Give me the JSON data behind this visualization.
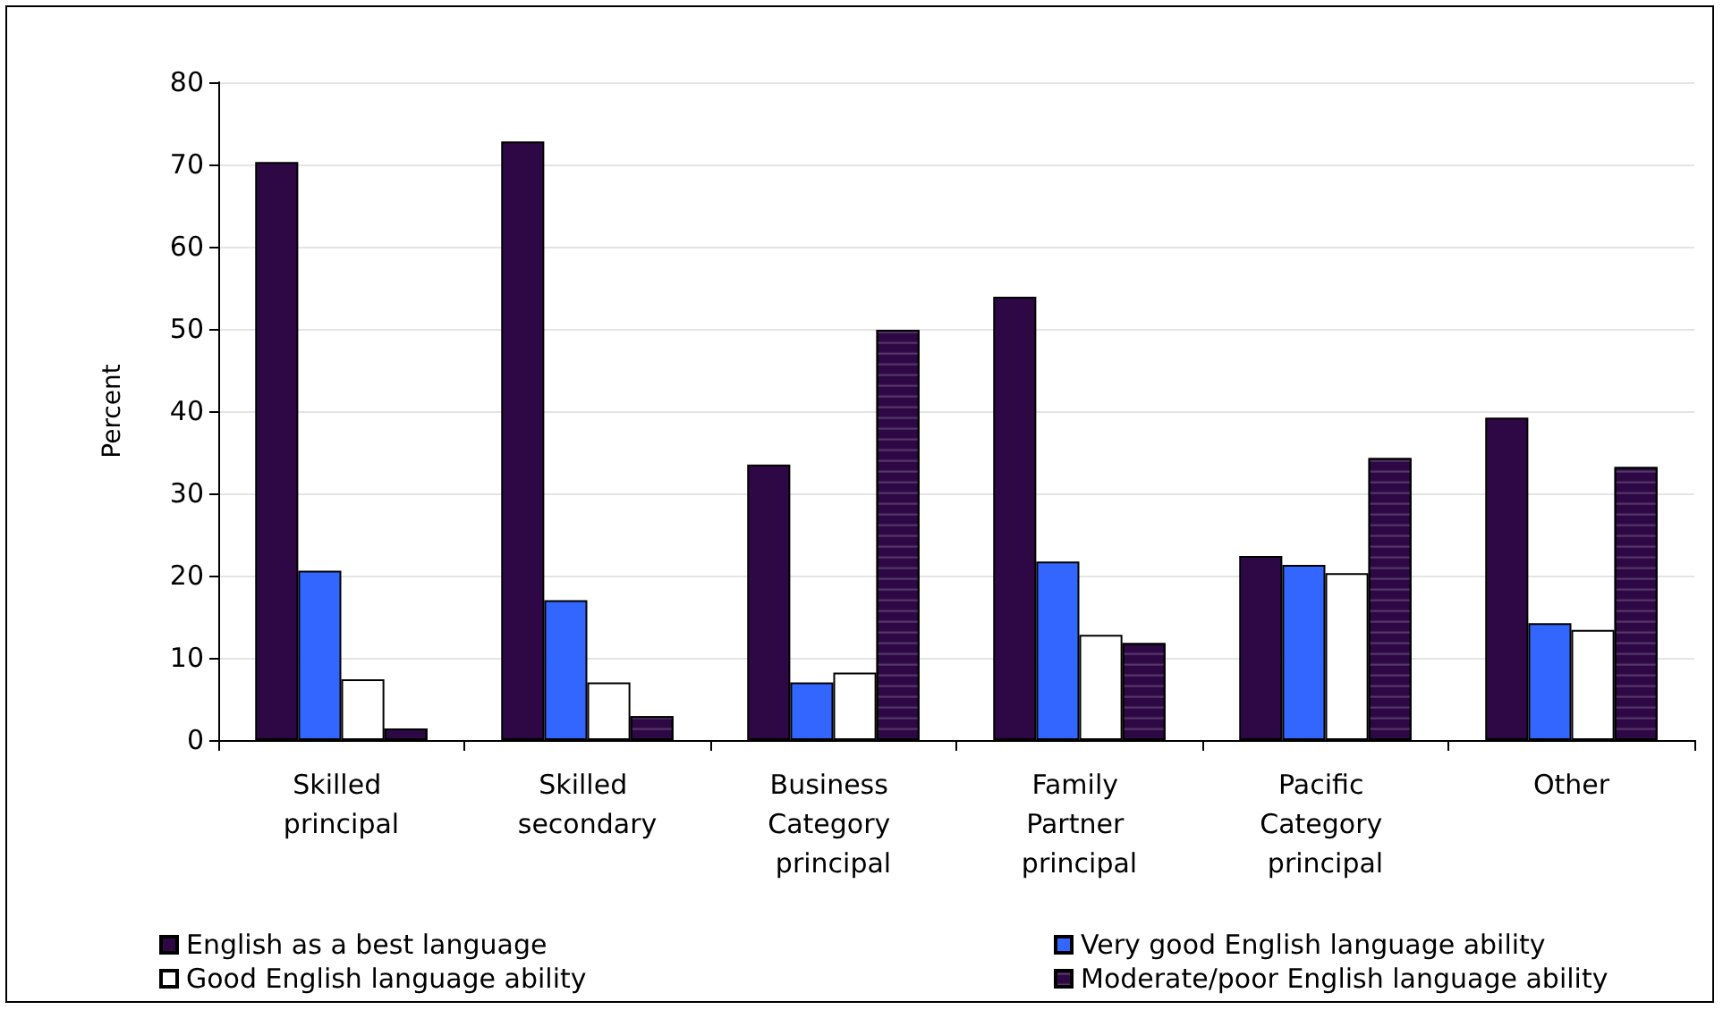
{
  "chart_data": {
    "type": "bar",
    "ylabel": "Percent",
    "categories": [
      "Skilled principal",
      "Skilled secondary",
      "Business Category principal",
      "Family Partner principal",
      "Pacific Category principal",
      "Other"
    ],
    "series": [
      {
        "name": "English as a best language",
        "color": "#2e0845",
        "values": [
          70.3,
          72.8,
          33.5,
          53.9,
          22.4,
          39.2
        ]
      },
      {
        "name": "Very good English language ability",
        "color": "#3366ff",
        "values": [
          20.6,
          17.0,
          7.0,
          21.7,
          21.3,
          14.2
        ]
      },
      {
        "name": "Good English language ability",
        "color": "#ffffff",
        "values": [
          7.4,
          7.0,
          8.2,
          12.8,
          20.3,
          13.4
        ]
      },
      {
        "name": "Moderate/poor English language ability",
        "color": "#2e0845",
        "values": [
          1.4,
          2.9,
          49.9,
          11.8,
          34.3,
          33.2
        ]
      }
    ],
    "ylim": [
      0,
      80
    ],
    "yticks": [
      0,
      10,
      20,
      30,
      40,
      50,
      60,
      70,
      80
    ],
    "grid": "y",
    "legend": "bottom"
  }
}
